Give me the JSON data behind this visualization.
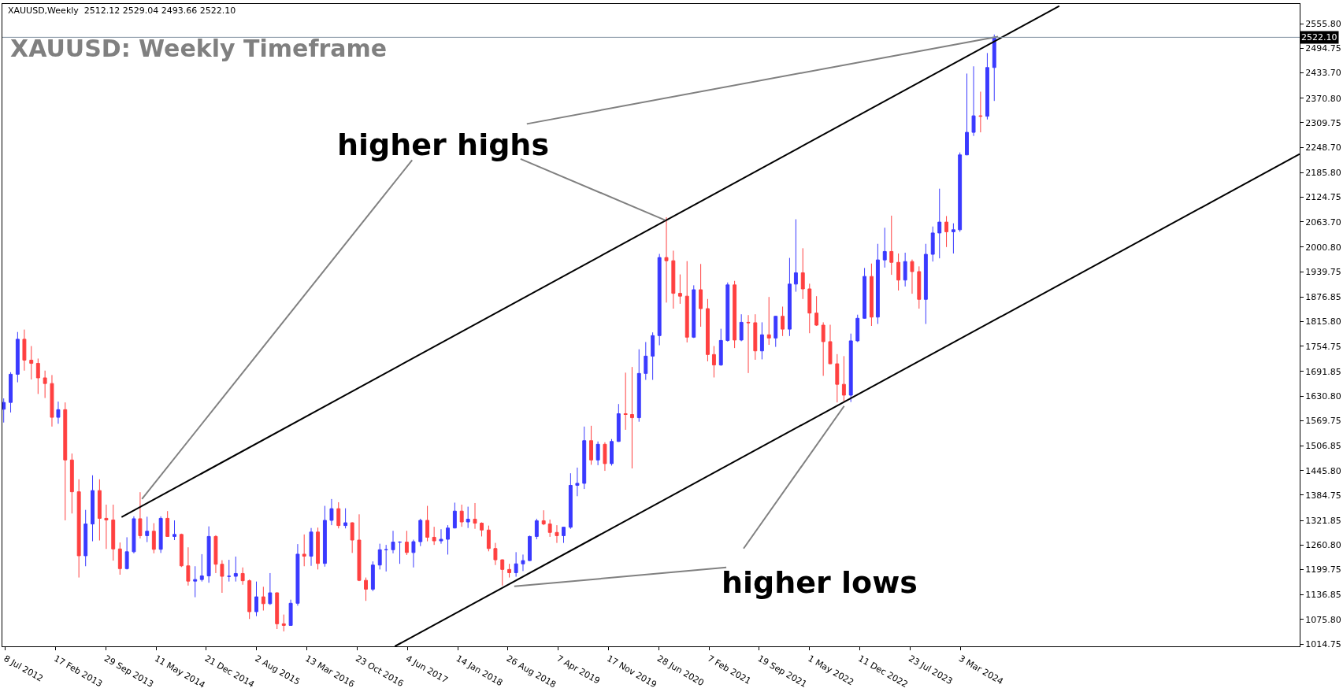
{
  "chart_data": {
    "type": "candlestick",
    "title": "XAUUSD: Weekly Timeframe",
    "subtitle": "XAUUSD,Weekly  2512.12 2529.04 2493.66 2522.10",
    "x": [
      "2012-07",
      "2012-08",
      "2012-09",
      "2012-10",
      "2012-11",
      "2012-12",
      "2013-01",
      "2013-02",
      "2013-03",
      "2013-04",
      "2013-05",
      "2013-06",
      "2013-07",
      "2013-08",
      "2013-09",
      "2013-10",
      "2013-11",
      "2013-12",
      "2014-01",
      "2014-02",
      "2014-03",
      "2014-04",
      "2014-05",
      "2014-06",
      "2014-07",
      "2014-08",
      "2014-09",
      "2014-10",
      "2014-11",
      "2014-12",
      "2015-01",
      "2015-02",
      "2015-03",
      "2015-04",
      "2015-05",
      "2015-06",
      "2015-07",
      "2015-08",
      "2015-09",
      "2015-10",
      "2015-11",
      "2015-12",
      "2016-01",
      "2016-02",
      "2016-03",
      "2016-04",
      "2016-05",
      "2016-06",
      "2016-07",
      "2016-08",
      "2016-09",
      "2016-10",
      "2016-11",
      "2016-12",
      "2017-01",
      "2017-02",
      "2017-03",
      "2017-04",
      "2017-05",
      "2017-06",
      "2017-07",
      "2017-08",
      "2017-09",
      "2017-10",
      "2017-11",
      "2017-12",
      "2018-01",
      "2018-02",
      "2018-03",
      "2018-04",
      "2018-05",
      "2018-06",
      "2018-07",
      "2018-08",
      "2018-09",
      "2018-10",
      "2018-11",
      "2018-12",
      "2019-01",
      "2019-02",
      "2019-03",
      "2019-04",
      "2019-05",
      "2019-06",
      "2019-07",
      "2019-08",
      "2019-09",
      "2019-10",
      "2019-11",
      "2019-12",
      "2020-01",
      "2020-02",
      "2020-03",
      "2020-04",
      "2020-05",
      "2020-06",
      "2020-07",
      "2020-08",
      "2020-09",
      "2020-10",
      "2020-11",
      "2020-12",
      "2021-01",
      "2021-02",
      "2021-03",
      "2021-04",
      "2021-05",
      "2021-06",
      "2021-07",
      "2021-08",
      "2021-09",
      "2021-10",
      "2021-11",
      "2021-12",
      "2022-01",
      "2022-02",
      "2022-03",
      "2022-04",
      "2022-05",
      "2022-06",
      "2022-07",
      "2022-08",
      "2022-09",
      "2022-10",
      "2022-11",
      "2022-12",
      "2023-01",
      "2023-02",
      "2023-03",
      "2023-04",
      "2023-05",
      "2023-06",
      "2023-07",
      "2023-08",
      "2023-09",
      "2023-10",
      "2023-11",
      "2023-12",
      "2024-01",
      "2024-02",
      "2024-03",
      "2024-04",
      "2024-05",
      "2024-06",
      "2024-07",
      "2024-08"
    ],
    "ohlc": [
      [
        1598,
        1625,
        1565,
        1615
      ],
      [
        1615,
        1690,
        1590,
        1685
      ],
      [
        1685,
        1790,
        1665,
        1772
      ],
      [
        1772,
        1796,
        1694,
        1720
      ],
      [
        1720,
        1755,
        1672,
        1712
      ],
      [
        1712,
        1724,
        1636,
        1676
      ],
      [
        1676,
        1694,
        1626,
        1662
      ],
      [
        1662,
        1683,
        1555,
        1578
      ],
      [
        1578,
        1617,
        1562,
        1597
      ],
      [
        1597,
        1615,
        1322,
        1472
      ],
      [
        1472,
        1488,
        1339,
        1393
      ],
      [
        1393,
        1424,
        1180,
        1234
      ],
      [
        1234,
        1348,
        1208,
        1313
      ],
      [
        1313,
        1434,
        1270,
        1396
      ],
      [
        1396,
        1424,
        1272,
        1327
      ],
      [
        1327,
        1361,
        1251,
        1323
      ],
      [
        1323,
        1361,
        1222,
        1251
      ],
      [
        1251,
        1267,
        1187,
        1202
      ],
      [
        1202,
        1280,
        1200,
        1244
      ],
      [
        1244,
        1332,
        1240,
        1326
      ],
      [
        1326,
        1392,
        1277,
        1284
      ],
      [
        1284,
        1331,
        1268,
        1295
      ],
      [
        1295,
        1315,
        1240,
        1250
      ],
      [
        1250,
        1332,
        1241,
        1327
      ],
      [
        1327,
        1345,
        1281,
        1282
      ],
      [
        1282,
        1322,
        1273,
        1287
      ],
      [
        1287,
        1289,
        1206,
        1209
      ],
      [
        1209,
        1255,
        1160,
        1171
      ],
      [
        1171,
        1208,
        1131,
        1175
      ],
      [
        1175,
        1238,
        1170,
        1184
      ],
      [
        1184,
        1307,
        1167,
        1282
      ],
      [
        1282,
        1285,
        1191,
        1213
      ],
      [
        1213,
        1223,
        1142,
        1183
      ],
      [
        1183,
        1224,
        1170,
        1183
      ],
      [
        1183,
        1232,
        1170,
        1190
      ],
      [
        1190,
        1205,
        1162,
        1172
      ],
      [
        1172,
        1175,
        1077,
        1095
      ],
      [
        1095,
        1170,
        1084,
        1132
      ],
      [
        1132,
        1157,
        1098,
        1115
      ],
      [
        1115,
        1191,
        1112,
        1142
      ],
      [
        1142,
        1143,
        1052,
        1065
      ],
      [
        1065,
        1088,
        1046,
        1061
      ],
      [
        1061,
        1125,
        1061,
        1116
      ],
      [
        1116,
        1263,
        1110,
        1238
      ],
      [
        1238,
        1287,
        1208,
        1233
      ],
      [
        1233,
        1303,
        1209,
        1293
      ],
      [
        1293,
        1304,
        1200,
        1215
      ],
      [
        1215,
        1358,
        1207,
        1322
      ],
      [
        1322,
        1375,
        1310,
        1351
      ],
      [
        1351,
        1367,
        1302,
        1309
      ],
      [
        1309,
        1352,
        1302,
        1316
      ],
      [
        1316,
        1317,
        1241,
        1273
      ],
      [
        1273,
        1337,
        1171,
        1173
      ],
      [
        1173,
        1180,
        1122,
        1151
      ],
      [
        1151,
        1220,
        1146,
        1211
      ],
      [
        1211,
        1264,
        1200,
        1249
      ],
      [
        1249,
        1261,
        1195,
        1249
      ],
      [
        1249,
        1296,
        1240,
        1268
      ],
      [
        1268,
        1270,
        1214,
        1268
      ],
      [
        1268,
        1296,
        1236,
        1242
      ],
      [
        1242,
        1274,
        1205,
        1269
      ],
      [
        1269,
        1326,
        1258,
        1322
      ],
      [
        1322,
        1358,
        1270,
        1280
      ],
      [
        1280,
        1306,
        1261,
        1271
      ],
      [
        1271,
        1300,
        1264,
        1275
      ],
      [
        1275,
        1310,
        1237,
        1303
      ],
      [
        1303,
        1366,
        1302,
        1345
      ],
      [
        1345,
        1361,
        1306,
        1318
      ],
      [
        1318,
        1356,
        1303,
        1325
      ],
      [
        1325,
        1365,
        1301,
        1315
      ],
      [
        1315,
        1317,
        1282,
        1298
      ],
      [
        1298,
        1309,
        1245,
        1252
      ],
      [
        1252,
        1266,
        1211,
        1224
      ],
      [
        1224,
        1225,
        1160,
        1200
      ],
      [
        1200,
        1214,
        1180,
        1192
      ],
      [
        1192,
        1243,
        1182,
        1214
      ],
      [
        1214,
        1237,
        1196,
        1222
      ],
      [
        1222,
        1284,
        1221,
        1282
      ],
      [
        1282,
        1326,
        1275,
        1321
      ],
      [
        1321,
        1347,
        1310,
        1313
      ],
      [
        1313,
        1324,
        1281,
        1292
      ],
      [
        1292,
        1310,
        1266,
        1284
      ],
      [
        1284,
        1306,
        1266,
        1305
      ],
      [
        1305,
        1439,
        1301,
        1409
      ],
      [
        1409,
        1453,
        1382,
        1414
      ],
      [
        1414,
        1555,
        1400,
        1520
      ],
      [
        1520,
        1557,
        1460,
        1472
      ],
      [
        1472,
        1518,
        1459,
        1511
      ],
      [
        1511,
        1516,
        1445,
        1463
      ],
      [
        1463,
        1524,
        1458,
        1518
      ],
      [
        1518,
        1611,
        1517,
        1587
      ],
      [
        1587,
        1689,
        1547,
        1585
      ],
      [
        1585,
        1703,
        1451,
        1577
      ],
      [
        1577,
        1747,
        1567,
        1687
      ],
      [
        1687,
        1765,
        1671,
        1730
      ],
      [
        1730,
        1789,
        1671,
        1781
      ],
      [
        1781,
        1984,
        1757,
        1975
      ],
      [
        1975,
        2075,
        1863,
        1967
      ],
      [
        1967,
        1992,
        1848,
        1886
      ],
      [
        1886,
        1933,
        1860,
        1879
      ],
      [
        1879,
        1966,
        1764,
        1777
      ],
      [
        1777,
        1906,
        1775,
        1895
      ],
      [
        1895,
        1959,
        1803,
        1848
      ],
      [
        1848,
        1872,
        1717,
        1734
      ],
      [
        1734,
        1755,
        1677,
        1708
      ],
      [
        1708,
        1798,
        1706,
        1769
      ],
      [
        1769,
        1913,
        1766,
        1907
      ],
      [
        1907,
        1917,
        1750,
        1770
      ],
      [
        1770,
        1834,
        1767,
        1814
      ],
      [
        1814,
        1832,
        1688,
        1813
      ],
      [
        1813,
        1834,
        1721,
        1743
      ],
      [
        1743,
        1814,
        1722,
        1783
      ],
      [
        1783,
        1877,
        1758,
        1775
      ],
      [
        1775,
        1830,
        1753,
        1829
      ],
      [
        1829,
        1853,
        1780,
        1797
      ],
      [
        1797,
        1974,
        1780,
        1909
      ],
      [
        1909,
        2070,
        1890,
        1937
      ],
      [
        1937,
        1998,
        1872,
        1897
      ],
      [
        1897,
        1910,
        1787,
        1837
      ],
      [
        1837,
        1879,
        1805,
        1807
      ],
      [
        1807,
        1814,
        1681,
        1766
      ],
      [
        1766,
        1808,
        1710,
        1711
      ],
      [
        1711,
        1735,
        1615,
        1660
      ],
      [
        1660,
        1730,
        1618,
        1633
      ],
      [
        1633,
        1786,
        1616,
        1768
      ],
      [
        1768,
        1833,
        1765,
        1824
      ],
      [
        1824,
        1949,
        1823,
        1928
      ],
      [
        1928,
        1960,
        1805,
        1827
      ],
      [
        1827,
        2009,
        1810,
        1969
      ],
      [
        1969,
        2049,
        1950,
        1990
      ],
      [
        1990,
        2079,
        1932,
        1963
      ],
      [
        1963,
        1985,
        1893,
        1919
      ],
      [
        1919,
        1987,
        1903,
        1965
      ],
      [
        1965,
        1970,
        1885,
        1940
      ],
      [
        1940,
        1953,
        1848,
        1871
      ],
      [
        1871,
        2009,
        1810,
        1983
      ],
      [
        1983,
        2052,
        1965,
        2036
      ],
      [
        2036,
        2146,
        1973,
        2063
      ],
      [
        2063,
        2078,
        2001,
        2039
      ],
      [
        2039,
        2060,
        1985,
        2044
      ],
      [
        2044,
        2236,
        2039,
        2230
      ],
      [
        2230,
        2432,
        2229,
        2286
      ],
      [
        2286,
        2450,
        2277,
        2327
      ],
      [
        2327,
        2387,
        2286,
        2326
      ],
      [
        2326,
        2483,
        2318,
        2447
      ],
      [
        2447,
        2529,
        2364,
        2522
      ]
    ],
    "colors": [
      "#3a3aff",
      "#3a3aff",
      "#3a3aff",
      "#ff4040",
      "#ff4040",
      "#ff4040",
      "#ff4040",
      "#ff4040",
      "#3a3aff",
      "#ff4040",
      "#ff4040",
      "#ff4040",
      "#3a3aff",
      "#3a3aff",
      "#ff4040",
      "#ff4040",
      "#ff4040",
      "#ff4040",
      "#3a3aff",
      "#3a3aff",
      "#ff4040",
      "#3a3aff",
      "#ff4040",
      "#3a3aff",
      "#ff4040",
      "#3a3aff",
      "#ff4040",
      "#ff4040",
      "#3a3aff",
      "#3a3aff",
      "#3a3aff",
      "#ff4040",
      "#ff4040",
      "#3a3aff",
      "#3a3aff",
      "#ff4040",
      "#ff4040",
      "#3a3aff",
      "#ff4040",
      "#3a3aff",
      "#ff4040",
      "#ff4040",
      "#3a3aff",
      "#3a3aff",
      "#ff4040",
      "#3a3aff",
      "#ff4040",
      "#3a3aff",
      "#3a3aff",
      "#ff4040",
      "#3a3aff",
      "#ff4040",
      "#ff4040",
      "#ff4040",
      "#3a3aff",
      "#3a3aff",
      "#3a3aff",
      "#3a3aff",
      "#3a3aff",
      "#ff4040",
      "#3a3aff",
      "#3a3aff",
      "#ff4040",
      "#ff4040",
      "#3a3aff",
      "#3a3aff",
      "#3a3aff",
      "#ff4040",
      "#3a3aff",
      "#ff4040",
      "#ff4040",
      "#ff4040",
      "#ff4040",
      "#ff4040",
      "#ff4040",
      "#3a3aff",
      "#3a3aff",
      "#3a3aff",
      "#3a3aff",
      "#ff4040",
      "#ff4040",
      "#ff4040",
      "#3a3aff",
      "#3a3aff",
      "#3a3aff",
      "#3a3aff",
      "#ff4040",
      "#3a3aff",
      "#ff4040",
      "#3a3aff",
      "#3a3aff",
      "#ff4040",
      "#ff4040",
      "#3a3aff",
      "#3a3aff",
      "#3a3aff",
      "#3a3aff",
      "#ff4040",
      "#ff4040",
      "#ff4040",
      "#ff4040",
      "#3a3aff",
      "#ff4040",
      "#ff4040",
      "#ff4040",
      "#3a3aff",
      "#3a3aff",
      "#ff4040",
      "#3a3aff",
      "#ff4040",
      "#ff4040",
      "#3a3aff",
      "#ff4040",
      "#3a3aff",
      "#ff4040",
      "#3a3aff",
      "#3a3aff",
      "#ff4040",
      "#ff4040",
      "#ff4040",
      "#ff4040",
      "#ff4040",
      "#ff4040",
      "#ff4040",
      "#3a3aff",
      "#3a3aff",
      "#3a3aff",
      "#ff4040",
      "#3a3aff",
      "#3a3aff",
      "#ff4040",
      "#ff4040",
      "#3a3aff",
      "#ff4040",
      "#ff4040",
      "#3a3aff",
      "#3a3aff",
      "#3a3aff",
      "#ff4040",
      "#3a3aff",
      "#3a3aff",
      "#3a3aff",
      "#3a3aff",
      "#ff4040",
      "#3a3aff",
      "#3a3aff"
    ],
    "series": [
      {
        "type": "line",
        "color": "#000000",
        "x": [
          "2013-12-08",
          "2025-05-18"
        ],
        "values": [
          1330,
          2600
        ]
      },
      {
        "type": "line",
        "color": "#000000",
        "x": [
          "2017-04-09",
          "2028-04-23"
        ],
        "values": [
          1009,
          2232
        ]
      },
      {
        "type": "line",
        "color": "#808080",
        "x": [
          "2017-06-25",
          "2014-03-09"
        ],
        "values": [
          2217,
          1375
        ]
      },
      {
        "type": "line",
        "color": "#808080",
        "x": [
          "2018-10-21",
          "2020-07-26"
        ],
        "values": [
          2220,
          2068
        ]
      },
      {
        "type": "line",
        "color": "#808080",
        "x": [
          "2018-11-18",
          "2024-08-18"
        ],
        "values": [
          2307,
          2524
        ]
      },
      {
        "type": "line",
        "color": "#808080",
        "x": [
          "2021-04-25",
          "2018-09-23"
        ],
        "values": [
          1205,
          1158
        ]
      },
      {
        "type": "line",
        "color": "#808080",
        "x": [
          "2021-07-11",
          "2022-10-02"
        ],
        "values": [
          1252,
          1606
        ]
      }
    ],
    "annotations": [
      "higher highs",
      "higher lows"
    ],
    "ref_lines": [
      {
        "axis": "y",
        "value": 2522.1,
        "label": "2522.10",
        "color": "#8090a0"
      }
    ],
    "xlim": [
      "2012-06-25",
      "2028-04-23"
    ],
    "xticks": [
      {
        "value": "2012-07-08",
        "label": "8 Jul 2012"
      },
      {
        "value": "2013-02-17",
        "label": "17 Feb 2013"
      },
      {
        "value": "2013-09-29",
        "label": "29 Sep 2013"
      },
      {
        "value": "2014-05-11",
        "label": "11 May 2014"
      },
      {
        "value": "2014-12-21",
        "label": "21 Dec 2014"
      },
      {
        "value": "2015-08-02",
        "label": "2 Aug 2015"
      },
      {
        "value": "2016-03-13",
        "label": "13 Mar 2016"
      },
      {
        "value": "2016-10-23",
        "label": "23 Oct 2016"
      },
      {
        "value": "2017-06-04",
        "label": "4 Jun 2017"
      },
      {
        "value": "2018-01-14",
        "label": "14 Jan 2018"
      },
      {
        "value": "2018-08-26",
        "label": "26 Aug 2018"
      },
      {
        "value": "2019-04-07",
        "label": "7 Apr 2019"
      },
      {
        "value": "2019-11-17",
        "label": "17 Nov 2019"
      },
      {
        "value": "2020-06-28",
        "label": "28 Jun 2020"
      },
      {
        "value": "2021-02-07",
        "label": "7 Feb 2021"
      },
      {
        "value": "2021-09-19",
        "label": "19 Sep 2021"
      },
      {
        "value": "2022-05-01",
        "label": "1 May 2022"
      },
      {
        "value": "2022-12-11",
        "label": "11 Dec 2022"
      },
      {
        "value": "2023-07-23",
        "label": "23 Jul 2023"
      },
      {
        "value": "2024-03-03",
        "label": "3 Mar 2024"
      }
    ],
    "ylim": [
      1009,
      2605
    ],
    "yticks": [
      {
        "value": 2555.8,
        "label": "2555.80"
      },
      2494.75,
      {
        "value": 2433.7,
        "label": "2433.70"
      },
      {
        "value": 2370.8,
        "label": "2370.80"
      },
      2309.75,
      {
        "value": 2248.7,
        "label": "2248.70"
      },
      {
        "value": 2185.8,
        "label": "2185.80"
      },
      2124.75,
      {
        "value": 2063.7,
        "label": "2063.70"
      },
      {
        "value": 2000.8,
        "label": "2000.80"
      },
      1939.75,
      1876.85,
      {
        "value": 1815.8,
        "label": "1815.80"
      },
      1754.75,
      1691.85,
      {
        "value": 1630.8,
        "label": "1630.80"
      },
      1569.75,
      1506.85,
      {
        "value": 1445.8,
        "label": "1445.80"
      },
      1384.75,
      1321.85,
      {
        "value": 1260.8,
        "label": "1260.80"
      },
      1199.75,
      1136.85,
      {
        "value": 1075.8,
        "label": "1075.80"
      },
      1014.75
    ],
    "tick_labels": true
  }
}
